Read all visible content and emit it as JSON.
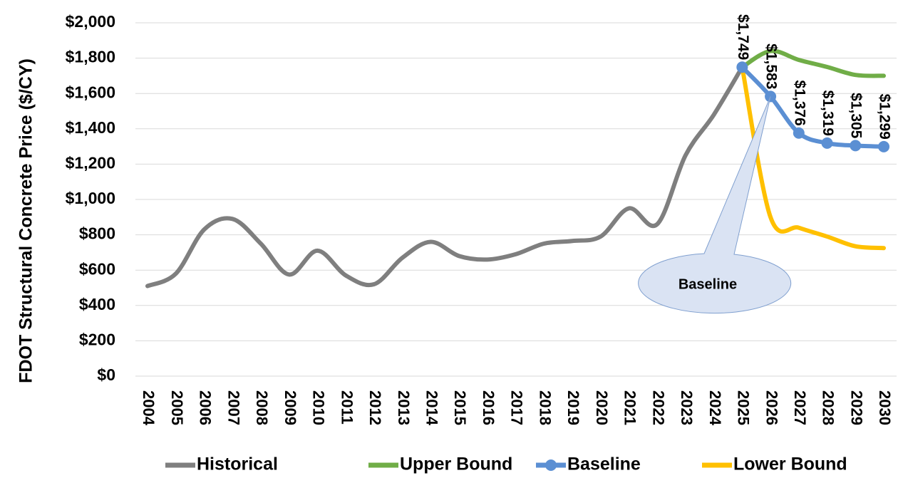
{
  "chart_data": {
    "type": "line",
    "y_label": "FDOT Structural Concrete Price ($/CY)",
    "categories": [
      "2004",
      "2005",
      "2006",
      "2007",
      "2008",
      "2009",
      "2010",
      "2011",
      "2012",
      "2013",
      "2014",
      "2015",
      "2016",
      "2017",
      "2018",
      "2019",
      "2020",
      "2021",
      "2022",
      "2023",
      "2024",
      "2025",
      "2026",
      "2027",
      "2028",
      "2029",
      "2030"
    ],
    "series": [
      {
        "name": "Historical",
        "color": "#7f7f7f",
        "values": [
          510,
          580,
          830,
          890,
          750,
          575,
          710,
          570,
          520,
          670,
          760,
          680,
          660,
          690,
          750,
          765,
          790,
          950,
          860,
          1250,
          1480,
          1749,
          null,
          null,
          null,
          null,
          null
        ]
      },
      {
        "name": "Upper Bound",
        "color": "#70ad47",
        "values": [
          null,
          null,
          null,
          null,
          null,
          null,
          null,
          null,
          null,
          null,
          null,
          null,
          null,
          null,
          null,
          null,
          null,
          null,
          null,
          null,
          null,
          1749,
          1840,
          1790,
          1750,
          1705,
          1700
        ]
      },
      {
        "name": "Baseline",
        "color": "#5b8fd3",
        "markers": true,
        "values": [
          null,
          null,
          null,
          null,
          null,
          null,
          null,
          null,
          null,
          null,
          null,
          null,
          null,
          null,
          null,
          null,
          null,
          null,
          null,
          null,
          null,
          1749,
          1583,
          1376,
          1319,
          1305,
          1299
        ],
        "value_labels": [
          null,
          null,
          null,
          null,
          null,
          null,
          null,
          null,
          null,
          null,
          null,
          null,
          null,
          null,
          null,
          null,
          null,
          null,
          null,
          null,
          null,
          "$1,749",
          "$1,583",
          "$1,376",
          "$1,319",
          "$1,305",
          "$1,299"
        ]
      },
      {
        "name": "Lower Bound",
        "color": "#ffc000",
        "values": [
          null,
          null,
          null,
          null,
          null,
          null,
          null,
          null,
          null,
          null,
          null,
          null,
          null,
          null,
          null,
          null,
          null,
          null,
          null,
          null,
          null,
          1749,
          900,
          840,
          790,
          735,
          725
        ]
      }
    ],
    "annotation": "Baseline",
    "ylim": [
      0,
      2000
    ],
    "yticks": [
      {
        "value": 0,
        "label": "$0"
      },
      {
        "value": 200,
        "label": "$200"
      },
      {
        "value": 400,
        "label": "$400"
      },
      {
        "value": 600,
        "label": "$600"
      },
      {
        "value": 800,
        "label": "$800"
      },
      {
        "value": 1000,
        "label": "$1,000"
      },
      {
        "value": 1200,
        "label": "$1,200"
      },
      {
        "value": 1400,
        "label": "$1,400"
      },
      {
        "value": 1600,
        "label": "$1,600"
      },
      {
        "value": 1800,
        "label": "$1,800"
      },
      {
        "value": 2000,
        "label": "$2,000"
      }
    ],
    "grid": true,
    "legend": "bottom"
  }
}
